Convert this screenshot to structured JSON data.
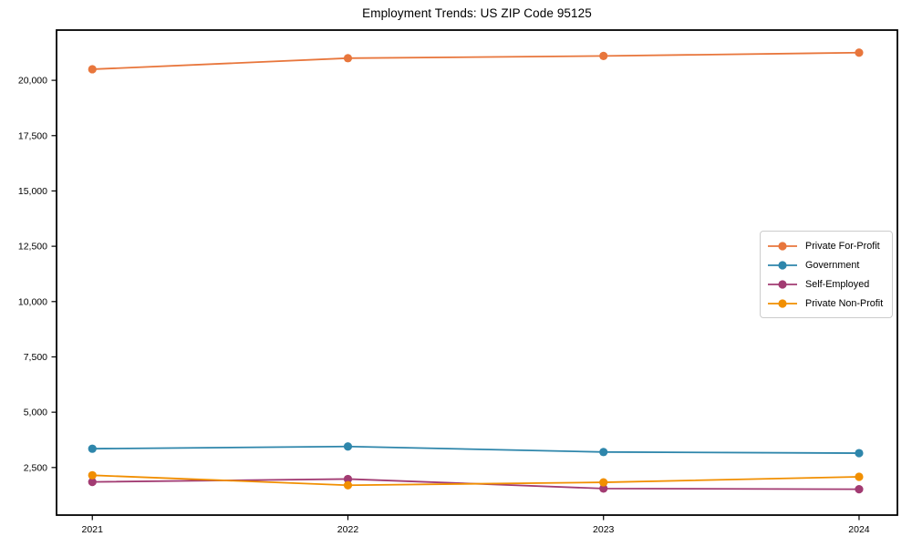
{
  "chart_data": {
    "type": "line",
    "title": "Employment Trends: US ZIP Code 95125",
    "xlabel": "",
    "ylabel": "",
    "x": [
      2021,
      2022,
      2023,
      2024
    ],
    "x_tick_labels": [
      "2021",
      "2022",
      "2023",
      "2024"
    ],
    "y_tick_values": [
      2500,
      5000,
      7500,
      10000,
      12500,
      15000,
      17500,
      20000
    ],
    "y_tick_labels": [
      "2,500",
      "5,000",
      "7,500",
      "10,000",
      "12,500",
      "15,000",
      "17,500",
      "20,000"
    ],
    "xlim": [
      2020.86,
      2024.15
    ],
    "ylim": [
      350,
      22270
    ],
    "grid": false,
    "legend_position": "center right",
    "series": [
      {
        "name": "Private For-Profit",
        "color": "#E8763C",
        "values": [
          20500,
          21000,
          21100,
          21250
        ]
      },
      {
        "name": "Government",
        "color": "#2E86AB",
        "values": [
          3350,
          3450,
          3200,
          3150
        ]
      },
      {
        "name": "Self-Employed",
        "color": "#A23B72",
        "values": [
          1850,
          1980,
          1550,
          1520
        ]
      },
      {
        "name": "Private Non-Profit",
        "color": "#F18F01",
        "values": [
          2150,
          1700,
          1830,
          2080
        ]
      }
    ]
  }
}
